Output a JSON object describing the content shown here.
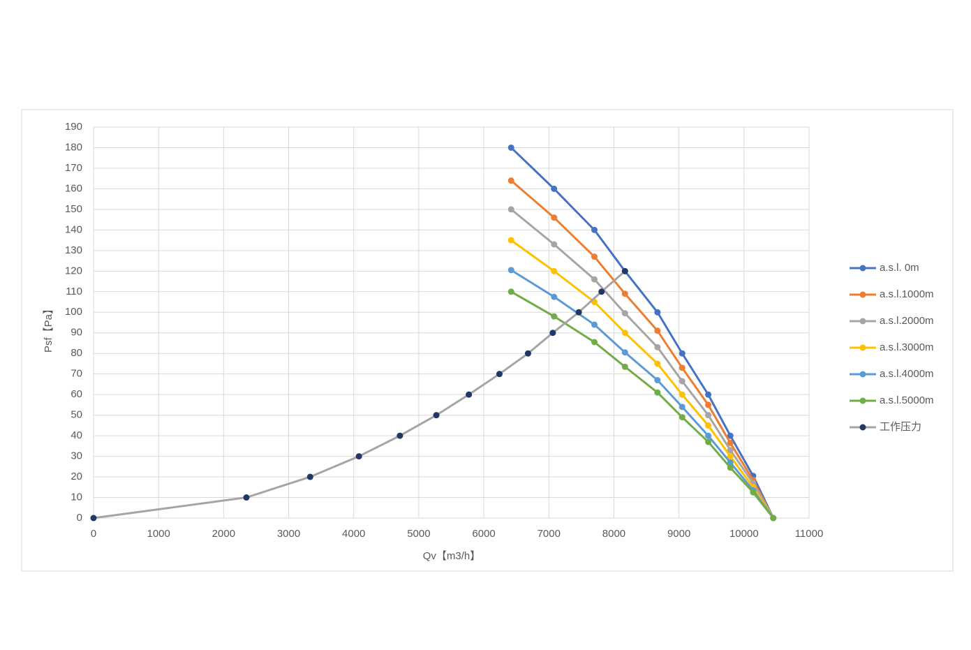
{
  "chart_data": {
    "type": "line",
    "xlabel": "Qv【m3/h】",
    "ylabel": "Psf【Pa】",
    "xlim": [
      0,
      11000
    ],
    "xticks": [
      0,
      1000,
      2000,
      3000,
      4000,
      5000,
      6000,
      7000,
      8000,
      9000,
      10000,
      11000
    ],
    "ylim": [
      0,
      190
    ],
    "yticks": [
      0,
      10,
      20,
      30,
      40,
      50,
      60,
      70,
      80,
      90,
      100,
      110,
      120,
      130,
      140,
      150,
      160,
      170,
      180,
      190
    ],
    "grid": true,
    "legend": "right",
    "series": [
      {
        "name": "a.s.l.  0m",
        "color": "#4472c4",
        "x": [
          6420,
          7080,
          7700,
          8170,
          8670,
          9050,
          9450,
          9790,
          10140,
          10450
        ],
        "values": [
          180,
          160,
          140,
          120,
          100,
          80,
          60,
          40,
          20.5,
          0
        ]
      },
      {
        "name": "a.s.l.1000m",
        "color": "#ed7d31",
        "x": [
          6420,
          7080,
          7700,
          8170,
          8670,
          9050,
          9450,
          9790,
          10140,
          10450
        ],
        "values": [
          164,
          146,
          127,
          109,
          91,
          73,
          55,
          36.5,
          18.5,
          0
        ]
      },
      {
        "name": "a.s.l.2000m",
        "color": "#a5a5a5",
        "x": [
          6420,
          7080,
          7700,
          8170,
          8670,
          9050,
          9450,
          9790,
          10140,
          10450
        ],
        "values": [
          150,
          133,
          116,
          99.5,
          83,
          66.5,
          50,
          33,
          17,
          0
        ]
      },
      {
        "name": "a.s.l.3000m",
        "color": "#ffc000",
        "x": [
          6420,
          7080,
          7700,
          8170,
          8670,
          9050,
          9450,
          9790,
          10140,
          10450
        ],
        "values": [
          135,
          120,
          105,
          90,
          75,
          60,
          45,
          30,
          15,
          0
        ]
      },
      {
        "name": "a.s.l.4000m",
        "color": "#5b9bd5",
        "x": [
          6420,
          7080,
          7700,
          8170,
          8670,
          9050,
          9450,
          9790,
          10140,
          10450
        ],
        "values": [
          120.5,
          107.5,
          94,
          80.5,
          67,
          54,
          40,
          27,
          13.5,
          0
        ]
      },
      {
        "name": "a.s.l.5000m",
        "color": "#70ad47",
        "x": [
          6420,
          7080,
          7700,
          8170,
          8670,
          9050,
          9450,
          9790,
          10140,
          10450
        ],
        "values": [
          110,
          98,
          85.5,
          73.5,
          61,
          49,
          37,
          24.5,
          12.5,
          0
        ]
      },
      {
        "name": "工作压力",
        "color": "#a5a5a5",
        "marker_color": "#1f3864",
        "x": [
          0,
          2350,
          3330,
          4080,
          4710,
          5270,
          5770,
          6240,
          6680,
          7060,
          7460,
          7810,
          8170
        ],
        "values": [
          0,
          10,
          20,
          30,
          40,
          50,
          60,
          70,
          80,
          90,
          100,
          110,
          120
        ]
      }
    ]
  }
}
